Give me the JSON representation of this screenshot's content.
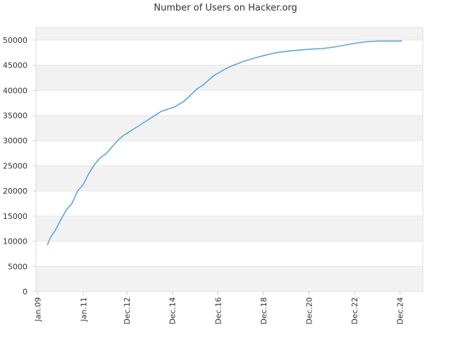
{
  "chart_data": {
    "type": "line",
    "title": "Number of Users on Hacker.org",
    "xlabel": "",
    "ylabel": "",
    "ylim": [
      0,
      52500
    ],
    "yticks": [
      0,
      5000,
      10000,
      15000,
      20000,
      25000,
      30000,
      35000,
      40000,
      45000,
      50000
    ],
    "xticks": [
      "Jan.09",
      "Jan.11",
      "Dec.12",
      "Dec.14",
      "Dec.16",
      "Dec.18",
      "Dec.20",
      "Dec.22",
      "Dec.24"
    ],
    "xtick_dates": [
      "2009-01-01",
      "2011-01-01",
      "2012-12-01",
      "2014-12-01",
      "2016-12-01",
      "2018-12-01",
      "2020-12-01",
      "2022-12-01",
      "2024-12-01"
    ],
    "xlim": [
      "2008-12-01",
      "2025-12-01"
    ],
    "grid": "horizontal-bands",
    "colors": {
      "line": "#5aa5e6",
      "band": "#f2f2f2",
      "axis": "#cccccc",
      "text": "#333333"
    },
    "series": [
      {
        "x": [
          "2009-06-01",
          "2009-08-01",
          "2009-10-01",
          "2010-01-01",
          "2010-04-01",
          "2010-07-01",
          "2010-10-01",
          "2011-01-01",
          "2011-04-01",
          "2011-07-01",
          "2011-10-01",
          "2012-01-01",
          "2012-04-01",
          "2012-07-01",
          "2012-10-01",
          "2013-01-01",
          "2013-06-01",
          "2014-01-01",
          "2014-06-01",
          "2015-01-01",
          "2015-06-01",
          "2015-10-01",
          "2016-01-01",
          "2016-04-01",
          "2016-07-01",
          "2016-10-01",
          "2017-01-01",
          "2017-04-01",
          "2017-07-01",
          "2018-01-01",
          "2018-07-01",
          "2019-01-01",
          "2019-07-01",
          "2020-01-01",
          "2020-07-01",
          "2021-01-01",
          "2021-07-01",
          "2022-01-01",
          "2022-07-01",
          "2023-01-01",
          "2023-07-01",
          "2024-01-01",
          "2024-07-01",
          "2025-01-01"
        ],
        "values": [
          9300,
          11000,
          12000,
          14200,
          16200,
          17500,
          20000,
          21300,
          23500,
          25300,
          26600,
          27400,
          28700,
          30000,
          31000,
          31700,
          32900,
          34600,
          35800,
          36700,
          37800,
          39200,
          40300,
          41000,
          42000,
          43000,
          43600,
          44300,
          44800,
          45700,
          46400,
          47000,
          47500,
          47800,
          48000,
          48200,
          48300,
          48600,
          49000,
          49400,
          49700,
          49800,
          49800,
          49800
        ]
      }
    ]
  }
}
